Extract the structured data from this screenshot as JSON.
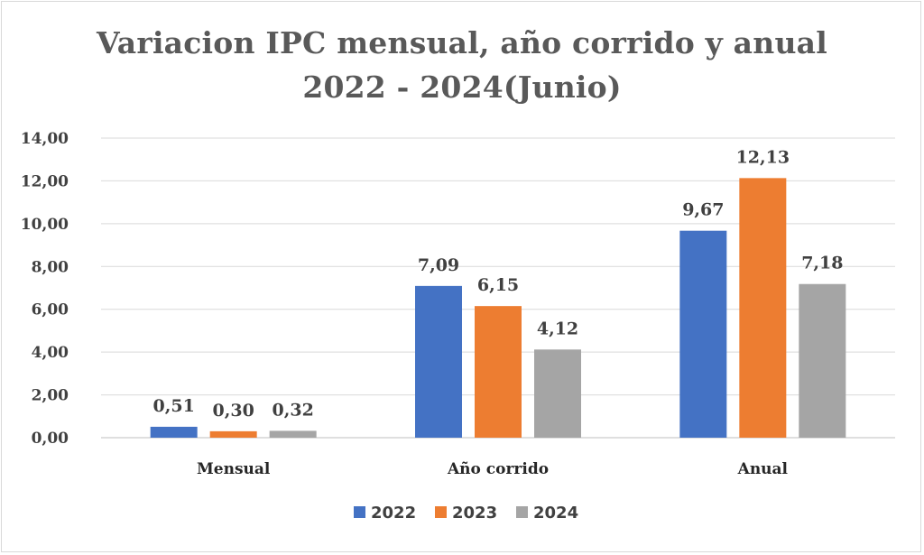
{
  "chart_data": {
    "type": "bar",
    "title_line1": "Variacion  IPC mensual, año corrido y anual",
    "title_line2": "2022 - 2024(Junio)",
    "categories": [
      "Mensual",
      "Año corrido",
      "Anual"
    ],
    "series": [
      {
        "name": "2022",
        "color": "#4472c4",
        "values": [
          0.51,
          7.09,
          9.67
        ],
        "labels": [
          "0,51",
          "7,09",
          "9,67"
        ]
      },
      {
        "name": "2023",
        "color": "#ed7d31",
        "values": [
          0.3,
          6.15,
          12.13
        ],
        "labels": [
          "0,30",
          "6,15",
          "12,13"
        ]
      },
      {
        "name": "2024",
        "color": "#a5a5a5",
        "values": [
          0.32,
          4.12,
          7.18
        ],
        "labels": [
          "0,32",
          "4,12",
          "7,18"
        ]
      }
    ],
    "ylim": [
      0,
      14
    ],
    "ytick_values": [
      0,
      2,
      4,
      6,
      8,
      10,
      12,
      14
    ],
    "ytick_labels": [
      "0,00",
      "2,00",
      "4,00",
      "6,00",
      "8,00",
      "10,00",
      "12,00",
      "14,00"
    ],
    "grid": true,
    "legend_position": "bottom",
    "xlabel": "",
    "ylabel": ""
  }
}
